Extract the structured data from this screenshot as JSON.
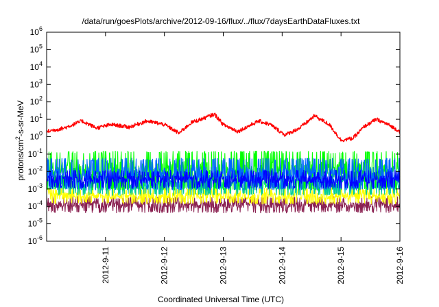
{
  "chart_data": {
    "type": "line",
    "title": "/data/run/goesPlots/archive/2012-09-16/flux/../flux/7daysEarthDataFluxes.txt",
    "xlabel": "Coordinated Universal Time (UTC)",
    "ylabel": "protons/cm²-s-sr-MeV",
    "yscale": "log",
    "ylim_exponent": [
      -6,
      6
    ],
    "y_ticks": [
      {
        "base": "10",
        "exp": "-6"
      },
      {
        "base": "10",
        "exp": "-5"
      },
      {
        "base": "10",
        "exp": "-4"
      },
      {
        "base": "10",
        "exp": "-3"
      },
      {
        "base": "10",
        "exp": "-2"
      },
      {
        "base": "10",
        "exp": "-1"
      },
      {
        "base": "10",
        "exp": "0"
      },
      {
        "base": "10",
        "exp": "1"
      },
      {
        "base": "10",
        "exp": "2"
      },
      {
        "base": "10",
        "exp": "3"
      },
      {
        "base": "10",
        "exp": "4"
      },
      {
        "base": "10",
        "exp": "5"
      },
      {
        "base": "10",
        "exp": "6"
      }
    ],
    "xlim_day": [
      0,
      6
    ],
    "x_ticks": [
      {
        "label": "2012-9-11",
        "day": 1
      },
      {
        "label": "2012-9-12",
        "day": 2
      },
      {
        "label": "2012-9-13",
        "day": 3
      },
      {
        "label": "2012-9-14",
        "day": 4
      },
      {
        "label": "2012-9-15",
        "day": 5
      },
      {
        "label": "2012-9-16",
        "day": 6
      }
    ],
    "grid": false,
    "legend": "none",
    "series": [
      {
        "color": "#8b2252",
        "band_log10": [
          -4.3,
          -3.5
        ]
      },
      {
        "color": "#ffff00",
        "band_log10": [
          -3.8,
          -3.0
        ]
      },
      {
        "color": "#00cc99",
        "band_log10": [
          -3.3,
          -2.2
        ]
      },
      {
        "color": "#00ff00",
        "band_log10": [
          -3.0,
          -0.9
        ]
      },
      {
        "color": "#0066ff",
        "band_log10": [
          -3.0,
          -1.3
        ]
      },
      {
        "color": "#0000ff",
        "band_log10": [
          -2.9,
          -2.0
        ]
      },
      {
        "color": "#ff0000",
        "day": [
          0.0,
          0.3,
          0.6,
          0.85,
          1.1,
          1.4,
          1.7,
          2.0,
          2.25,
          2.45,
          2.7,
          2.85,
          3.0,
          3.25,
          3.6,
          3.8,
          4.05,
          4.3,
          4.55,
          4.8,
          5.0,
          5.2,
          5.4,
          5.6,
          5.8,
          6.0
        ],
        "log10": [
          0.3,
          0.5,
          0.9,
          0.5,
          0.7,
          0.55,
          0.9,
          0.7,
          0.2,
          0.8,
          1.1,
          1.3,
          0.7,
          0.3,
          0.9,
          0.7,
          0.1,
          0.5,
          1.2,
          0.7,
          -0.2,
          -0.1,
          0.6,
          1.0,
          0.7,
          0.3
        ]
      }
    ]
  }
}
